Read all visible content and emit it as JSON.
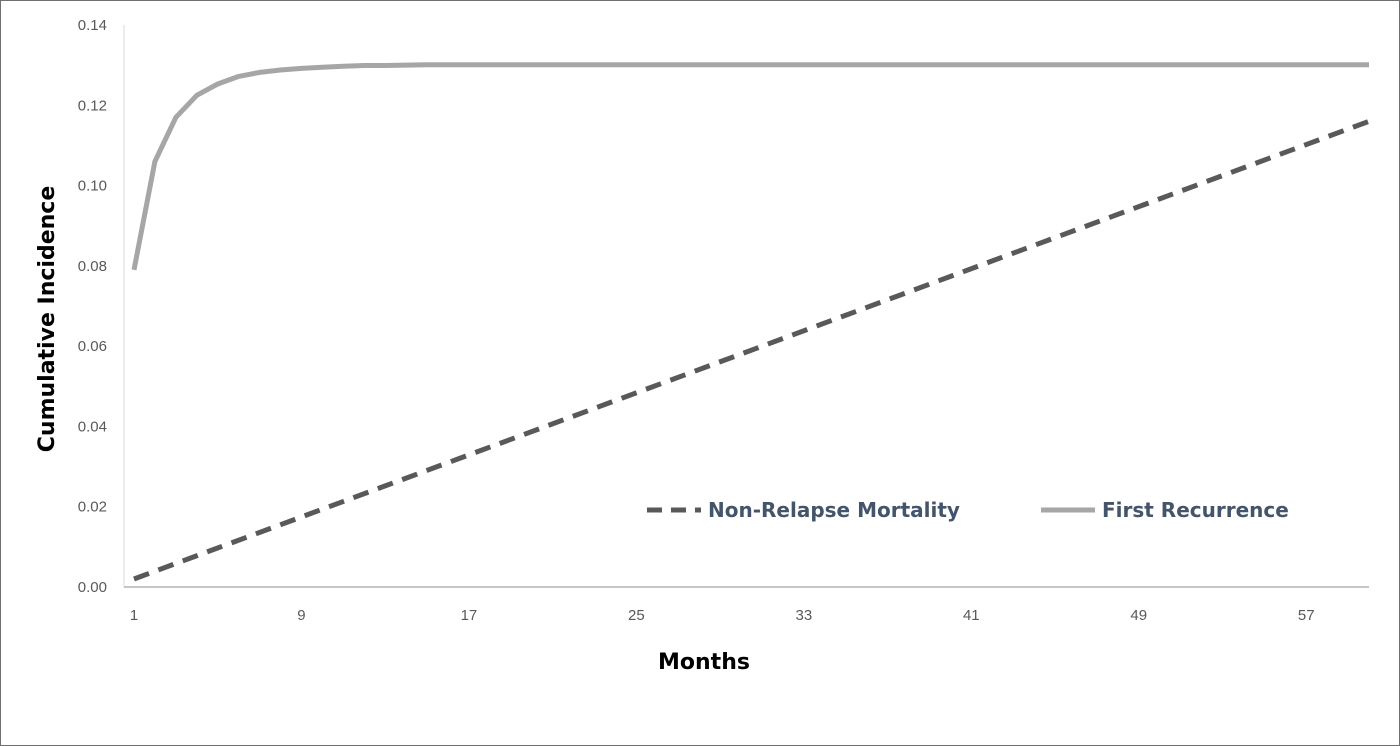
{
  "chart_data": {
    "type": "line",
    "title": "",
    "xlabel": "Months",
    "ylabel": "Cumulative Incidence",
    "xlim": [
      1,
      60
    ],
    "ylim": [
      0,
      0.14
    ],
    "x_ticks": [
      "1",
      "9",
      "17",
      "25",
      "33",
      "41",
      "49",
      "57"
    ],
    "y_ticks": [
      "0.00",
      "0.02",
      "0.04",
      "0.06",
      "0.08",
      "0.10",
      "0.12",
      "0.14"
    ],
    "grid": false,
    "legend_position": "bottom-right-inside",
    "series": [
      {
        "name": "Non-Relapse Mortality",
        "color": "#595959",
        "dash": "dashed",
        "x": [
          1,
          60
        ],
        "y": [
          0.002,
          0.116
        ]
      },
      {
        "name": "First Recurrence",
        "color": "#a6a6a6",
        "dash": "solid",
        "x": [
          1,
          2,
          3,
          4,
          5,
          6,
          7,
          8,
          9,
          10,
          11,
          12,
          13,
          14,
          15,
          20,
          30,
          40,
          50,
          60
        ],
        "y": [
          0.079,
          0.106,
          0.117,
          0.1225,
          0.1253,
          0.1272,
          0.1282,
          0.1288,
          0.1292,
          0.1295,
          0.1297,
          0.1299,
          0.1299,
          0.13,
          0.1301,
          0.1301,
          0.1301,
          0.1301,
          0.1301,
          0.1301
        ]
      }
    ]
  }
}
